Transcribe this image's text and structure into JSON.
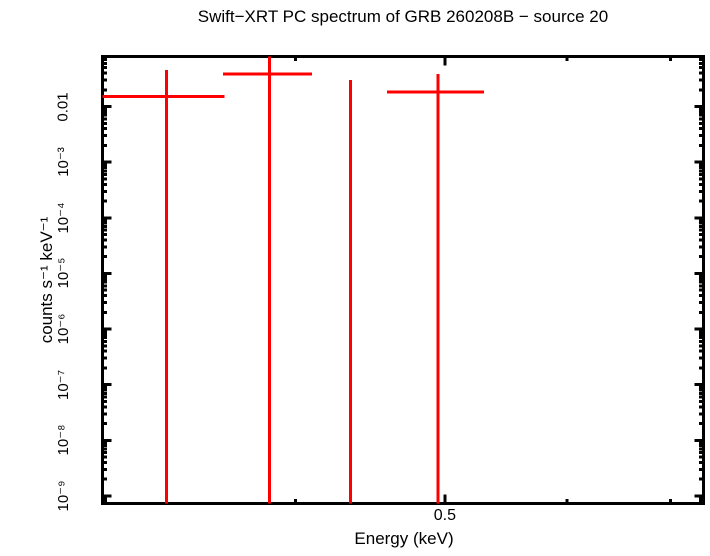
{
  "chart_data": {
    "type": "scatter",
    "title": "Swift−XRT PC spectrum of GRB 260208B − source 20",
    "xlabel": "Energy (keV)",
    "ylabel": "counts s⁻¹ keV⁻¹",
    "x_scale": "log",
    "y_scale": "log",
    "xlim": [
      0.3,
      0.7355
    ],
    "ylim": [
      7.3e-10,
      0.0796
    ],
    "grid": false,
    "legend": false,
    "frame_color": "#000000",
    "data_color": "#ff0000",
    "x_ticks": [
      {
        "value": 0.4,
        "label": "",
        "major": false
      },
      {
        "value": 0.5,
        "label": "0.5",
        "major": true
      },
      {
        "value": 0.6,
        "label": "",
        "major": false
      },
      {
        "value": 0.7,
        "label": "",
        "major": false
      }
    ],
    "y_ticks": [
      {
        "value": 0.01,
        "label": "0.01"
      },
      {
        "value": 0.001,
        "label": "10⁻³"
      },
      {
        "value": 0.0001,
        "label": "10⁻⁴"
      },
      {
        "value": 1e-05,
        "label": "10⁻⁵"
      },
      {
        "value": 1e-06,
        "label": "10⁻⁶"
      },
      {
        "value": 1e-07,
        "label": "10⁻⁷"
      },
      {
        "value": 1e-08,
        "label": "10⁻⁸"
      },
      {
        "value": 1e-09,
        "label": "10⁻⁹"
      }
    ],
    "points": [
      {
        "e_min": 0.3,
        "e_max": 0.36,
        "e_center": 0.33,
        "rate": 0.0152,
        "rate_upper": 0.0455,
        "upper_clipped": false,
        "lower_extends_below_axis": true
      },
      {
        "e_min": 0.359,
        "e_max": 0.41,
        "e_center": 0.385,
        "rate": 0.0386,
        "rate_upper": 0.085,
        "upper_clipped": true,
        "lower_extends_below_axis": true
      },
      {
        "e_min": 0.434,
        "e_max": 0.435,
        "e_center": 0.4345,
        "rate": null,
        "rate_upper": 0.0301,
        "upper_clipped": false,
        "lower_extends_below_axis": true
      },
      {
        "e_min": 0.4585,
        "e_max": 0.53,
        "e_center": 0.495,
        "rate": 0.0183,
        "rate_upper": 0.0386,
        "upper_clipped": false,
        "lower_extends_below_axis": true
      }
    ]
  }
}
